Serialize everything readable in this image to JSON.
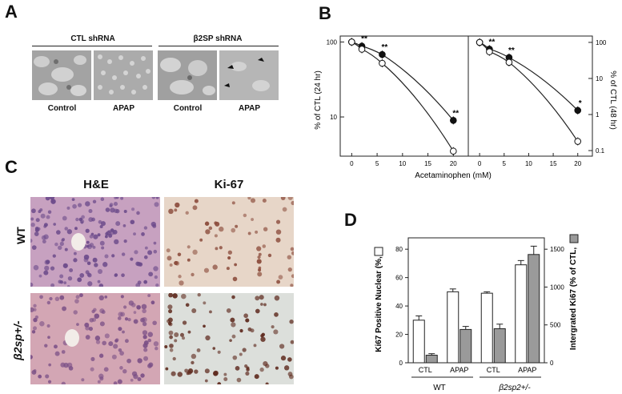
{
  "panels": {
    "A": {
      "letter": "A",
      "groups": [
        "CTL shRNA",
        "β2SP shRNA"
      ],
      "conditions": [
        "Control",
        "APAP",
        "Control",
        "APAP"
      ]
    },
    "B": {
      "letter": "B",
      "xlabel": "Acetaminophen (mM)",
      "ylabel_left": "% of CTL (24 hr)",
      "ylabel_right": "% of CTL (48 hr)",
      "xticks": [
        "0",
        "5",
        "10",
        "15",
        "20"
      ],
      "yticks_left": [
        "10",
        "100"
      ],
      "yticks_right": [
        "0.1",
        "1",
        "10",
        "100"
      ]
    },
    "C": {
      "letter": "C",
      "col_labels": [
        "H&E",
        "Ki-67"
      ],
      "row_labels": [
        "WT",
        "β2sp+/-"
      ]
    },
    "D": {
      "letter": "D",
      "ylabel_left": "Ki67 Positive Nuclear (%,",
      "ylabel_right": "Intergrated Ki67 (% of CTL,",
      "yticks_left": [
        "0",
        "20",
        "40",
        "60",
        "80"
      ],
      "yticks_right": [
        "0",
        "500",
        "1000",
        "1500"
      ],
      "xgroups": [
        "CTL",
        "APAP",
        "CTL",
        "APAP"
      ],
      "genotypes": [
        "WT",
        "β2sp2+/-"
      ]
    }
  },
  "chart_data": [
    {
      "type": "line",
      "panel": "B-left",
      "x": [
        0,
        2,
        6,
        20
      ],
      "xlim": [
        -1,
        22
      ],
      "ylim": [
        3,
        120
      ],
      "yscale": "log",
      "series": [
        {
          "marker": "filled-circle",
          "values": [
            100,
            88,
            68,
            9
          ]
        },
        {
          "marker": "open-circle",
          "values": [
            100,
            80,
            52,
            3.5
          ]
        }
      ],
      "significance": [
        {
          "x": 2,
          "label": "**"
        },
        {
          "x": 6,
          "label": "**"
        },
        {
          "x": 20,
          "label": "**"
        }
      ]
    },
    {
      "type": "line",
      "panel": "B-right",
      "x": [
        0,
        2,
        6,
        20
      ],
      "xlim": [
        -1,
        22
      ],
      "ylim": [
        0.07,
        150
      ],
      "yscale": "log",
      "series": [
        {
          "marker": "filled-circle",
          "values": [
            100,
            65,
            38,
            1.3
          ]
        },
        {
          "marker": "open-circle",
          "values": [
            100,
            55,
            28,
            0.18
          ]
        }
      ],
      "significance": [
        {
          "x": 2,
          "label": "**"
        },
        {
          "x": 6,
          "label": "**"
        },
        {
          "x": 20,
          "label": "*"
        }
      ]
    },
    {
      "type": "bar",
      "panel": "D",
      "categories": [
        "CTL",
        "APAP",
        "CTL",
        "APAP"
      ],
      "ylim": [
        0,
        88
      ],
      "ylim_right": [
        0,
        1650
      ],
      "series": [
        {
          "axis": "left",
          "fill": "#ffffff",
          "values": [
            30,
            50,
            49,
            69
          ],
          "errors": [
            3,
            2,
            1,
            3
          ]
        },
        {
          "axis": "right",
          "fill": "#9a9a9a",
          "values": [
            100,
            440,
            450,
            1430
          ],
          "errors": [
            20,
            40,
            60,
            110
          ]
        }
      ]
    }
  ]
}
